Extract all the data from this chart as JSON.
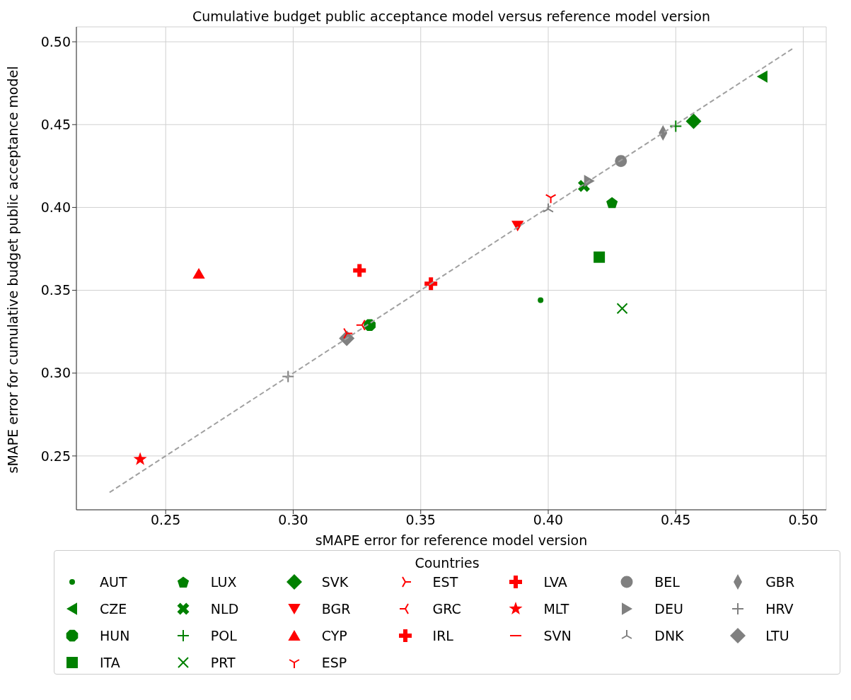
{
  "chart_data": {
    "type": "scatter",
    "title": "Cumulative budget public acceptance model versus reference model version",
    "xlabel": "sMAPE error for reference model version",
    "ylabel": "sMAPE error for cumulative budget public acceptance model",
    "legend_title": "Countries",
    "legend": "bottom",
    "grid": true,
    "xlim": [
      0.215,
      0.509
    ],
    "xticks": [
      {
        "value": 0.25,
        "label": "0.25"
      },
      {
        "value": 0.3,
        "label": "0.30"
      },
      {
        "value": 0.35,
        "label": "0.35"
      },
      {
        "value": 0.4,
        "label": "0.40"
      },
      {
        "value": 0.45,
        "label": "0.45"
      },
      {
        "value": 0.5,
        "label": "0.50"
      }
    ],
    "ylim": [
      0.2175,
      0.509
    ],
    "yticks": [
      {
        "value": 0.25,
        "label": "0.25"
      },
      {
        "value": 0.3,
        "label": "0.30"
      },
      {
        "value": 0.35,
        "label": "0.35"
      },
      {
        "value": 0.4,
        "label": "0.40"
      },
      {
        "value": 0.45,
        "label": "0.45"
      },
      {
        "value": 0.5,
        "label": "0.50"
      }
    ],
    "series": [
      {
        "name": "AUT",
        "color": "#008000",
        "marker": "point",
        "x": [
          0.397
        ],
        "values": [
          0.344
        ]
      },
      {
        "name": "CZE",
        "color": "#008000",
        "marker": "triangle-left",
        "x": [
          0.484
        ],
        "values": [
          0.479
        ]
      },
      {
        "name": "HUN",
        "color": "#008000",
        "x": [
          0.33
        ],
        "values": [
          0.329
        ]
      },
      {
        "name": "ITA",
        "color": "#008000",
        "marker": "square",
        "x": [
          0.42
        ],
        "values": [
          0.37
        ]
      },
      {
        "name": "LUX",
        "color": "#008000",
        "x": [
          0.425
        ],
        "values": [
          0.403
        ]
      },
      {
        "name": "NLD",
        "color": "#008000",
        "x": [
          0.414
        ],
        "values": [
          0.413
        ]
      },
      {
        "name": "POL",
        "color": "#008000",
        "marker": "plus",
        "x": [
          0.45
        ],
        "values": [
          0.449
        ]
      },
      {
        "name": "PRT",
        "color": "#008000",
        "marker": "x",
        "x": [
          0.429
        ],
        "values": [
          0.339
        ]
      },
      {
        "name": "SVK",
        "color": "#008000",
        "marker": "diamond",
        "x": [
          0.457
        ],
        "values": [
          0.452
        ]
      },
      {
        "name": "BGR",
        "color": "#ff0000",
        "marker": "triangle-down",
        "x": [
          0.388
        ],
        "values": [
          0.389
        ]
      },
      {
        "name": "CYP",
        "color": "#ff0000",
        "marker": "triangle",
        "x": [
          0.263
        ],
        "values": [
          0.36
        ]
      },
      {
        "name": "ESP",
        "color": "#ff0000",
        "x": [
          0.401
        ],
        "values": [
          0.406
        ]
      },
      {
        "name": "EST",
        "color": "#ff0000",
        "x": [
          0.321
        ],
        "values": [
          0.324
        ]
      },
      {
        "name": "GRC",
        "color": "#ff0000",
        "x": [
          0.327
        ],
        "values": [
          0.329
        ]
      },
      {
        "name": "IRL",
        "color": "#ff0000",
        "x": [
          0.326
        ],
        "values": [
          0.362
        ]
      },
      {
        "name": "LVA",
        "color": "#ff0000",
        "x": [
          0.354
        ],
        "values": [
          0.354
        ]
      },
      {
        "name": "MLT",
        "color": "#ff0000",
        "marker": "star",
        "x": [
          0.24
        ],
        "values": [
          0.248
        ]
      },
      {
        "name": "SVN",
        "color": "#ff0000",
        "marker": "hline",
        "x": [
          null
        ],
        "values": [
          null
        ]
      },
      {
        "name": "BEL",
        "color": "#808080",
        "marker": "circle",
        "x": [
          0.4285
        ],
        "values": [
          0.428
        ]
      },
      {
        "name": "DEU",
        "color": "#808080",
        "x": [
          0.416
        ],
        "values": [
          0.416
        ]
      },
      {
        "name": "DNK",
        "color": "#808080",
        "x": [
          0.4
        ],
        "values": [
          0.399
        ]
      },
      {
        "name": "GBR",
        "color": "#808080",
        "x": [
          0.445
        ],
        "values": [
          0.445
        ]
      },
      {
        "name": "HRV",
        "color": "#808080",
        "marker": "plus",
        "x": [
          0.298
        ],
        "values": [
          0.298
        ]
      },
      {
        "name": "LTU",
        "color": "#808080",
        "marker": "diamond",
        "x": [
          0.321
        ],
        "values": [
          0.321
        ]
      },
      {
        "type": "line",
        "color": "#a0a0a0",
        "line_style": "dashed",
        "marker": "none",
        "x": [
          0.228,
          0.496
        ],
        "values": [
          0.228,
          0.496
        ]
      }
    ]
  }
}
